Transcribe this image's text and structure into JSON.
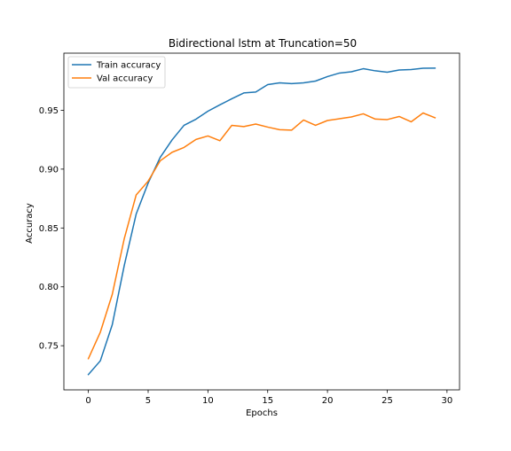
{
  "chart_data": {
    "type": "line",
    "title": "Bidirectional lstm at Truncation=50",
    "xlabel": "Epochs",
    "ylabel": "Accuracy",
    "xlim": [
      -2.05,
      31.05
    ],
    "ylim": [
      0.7125,
      0.9985
    ],
    "xticks": [
      0,
      5,
      10,
      15,
      20,
      25,
      30
    ],
    "xtick_labels": [
      "0",
      "5",
      "10",
      "15",
      "20",
      "25",
      "30"
    ],
    "yticks": [
      0.75,
      0.8,
      0.85,
      0.9,
      0.95
    ],
    "ytick_labels": [
      "0.75",
      "0.80",
      "0.85",
      "0.90",
      "0.95"
    ],
    "grid": false,
    "legend_position": "top-left",
    "x": [
      0,
      1,
      2,
      3,
      4,
      5,
      6,
      7,
      8,
      9,
      10,
      11,
      12,
      13,
      14,
      15,
      16,
      17,
      18,
      19,
      20,
      21,
      22,
      23,
      24,
      25,
      26,
      27,
      28,
      29
    ],
    "series": [
      {
        "name": "Train accuracy",
        "color": "#1f77b4",
        "values": [
          0.7255,
          0.7372,
          0.7679,
          0.8181,
          0.8619,
          0.8882,
          0.9098,
          0.9248,
          0.9372,
          0.9424,
          0.9492,
          0.9546,
          0.9598,
          0.9647,
          0.9655,
          0.9718,
          0.9733,
          0.9726,
          0.9733,
          0.9748,
          0.9786,
          0.9816,
          0.9827,
          0.9853,
          0.9835,
          0.9823,
          0.9842,
          0.9846,
          0.9857,
          0.9858
        ]
      },
      {
        "name": "Val accuracy",
        "color": "#ff7f0e",
        "values": [
          0.739,
          0.7615,
          0.7937,
          0.8409,
          0.8781,
          0.8898,
          0.907,
          0.9143,
          0.9184,
          0.9252,
          0.9282,
          0.9241,
          0.9372,
          0.9361,
          0.9383,
          0.9357,
          0.9335,
          0.9331,
          0.9417,
          0.9372,
          0.9413,
          0.9428,
          0.9443,
          0.947,
          0.9425,
          0.9421,
          0.9447,
          0.9402,
          0.9477,
          0.9436
        ]
      }
    ]
  }
}
